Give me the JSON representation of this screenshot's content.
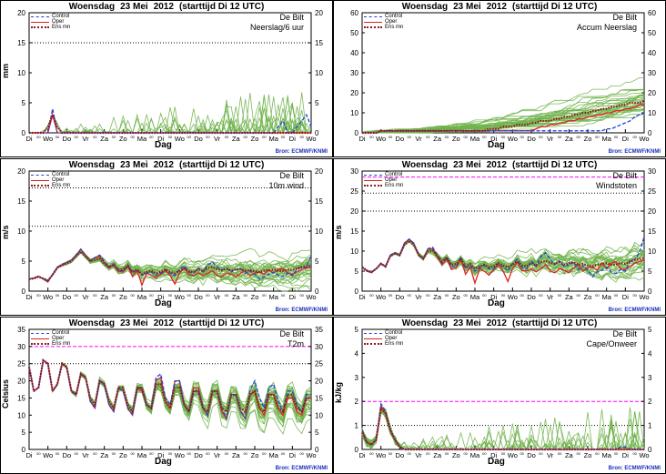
{
  "header": {
    "day": "Woensdag",
    "date": "23 Mei",
    "year": "2012",
    "start": "(starttijd  Di 12 UTC)"
  },
  "legend": {
    "control": "Control",
    "oper": "Oper",
    "ensmn": "Ens mn"
  },
  "source": "Bron: ECMWF/KNMI",
  "station": "De Bilt",
  "xaxis_label": "Dag",
  "day_ticks": [
    "Di",
    "Wo",
    "Do",
    "Vr",
    "Za",
    "Zo",
    "Ma",
    "Di",
    "Wo",
    "Do",
    "Vr",
    "Za",
    "Zo",
    "Ma",
    "Di",
    "Wo"
  ],
  "colors": {
    "control": "#2244dd",
    "oper": "#dd2222",
    "ensmn": "#8b1a1a",
    "members": "#6fb34a",
    "ref_line": "#ff00ff"
  },
  "chart_data": [
    {
      "id": "precip6h",
      "type": "line",
      "subtitle": "Neerslag/6 uur",
      "ylabel": "mm",
      "ylim": [
        0,
        20
      ],
      "yticks": [
        0,
        5,
        10,
        15,
        20
      ],
      "ref_lines": [
        {
          "value": 15,
          "style": "dotted-black"
        }
      ],
      "control": [
        0,
        0,
        0,
        0,
        0,
        4,
        0,
        0,
        0,
        0,
        0,
        0,
        0,
        0,
        0,
        0,
        0,
        0,
        0,
        0,
        0,
        0,
        0,
        0,
        0,
        0,
        0,
        0,
        0,
        0,
        0,
        0,
        0,
        0,
        0,
        0,
        0,
        0,
        0,
        0,
        0,
        0,
        0,
        0,
        0,
        0,
        0,
        0,
        0,
        0,
        0,
        0,
        0,
        1,
        2,
        0,
        0,
        1,
        2,
        3,
        1
      ],
      "oper": [
        0,
        0,
        0,
        0,
        0,
        3,
        0,
        0,
        0,
        0,
        0,
        0,
        0,
        0,
        0,
        0,
        0,
        0,
        0,
        0,
        0,
        0,
        0,
        0,
        0,
        0,
        0,
        0,
        0,
        0,
        0,
        0,
        0,
        0,
        0,
        0,
        0,
        0,
        0,
        0,
        0,
        0,
        0,
        0,
        0,
        0,
        0,
        0,
        0,
        0,
        0,
        0,
        0,
        0,
        0,
        0,
        0,
        0,
        0,
        0,
        0
      ],
      "ensmn": [
        0,
        0,
        0,
        0,
        1,
        3,
        1,
        0,
        0,
        0,
        0,
        0,
        0,
        0,
        0,
        0,
        0,
        0,
        0,
        0,
        0,
        0,
        0,
        0,
        0,
        0,
        0,
        0,
        0,
        0,
        0,
        0,
        0,
        0,
        0,
        0,
        0,
        0,
        0,
        0,
        0,
        0,
        0,
        0,
        0,
        0,
        0,
        0,
        0,
        0,
        0,
        0,
        0,
        0,
        0,
        0,
        0,
        0,
        0,
        0,
        0
      ]
    },
    {
      "id": "accum",
      "type": "line",
      "subtitle": "Accum Neerslag",
      "ylabel": "",
      "ylim": [
        0,
        60
      ],
      "yticks": [
        0,
        10,
        20,
        30,
        40,
        50,
        60
      ],
      "ref_lines": [],
      "control": [
        0,
        0,
        0,
        0,
        1,
        1,
        1,
        1,
        1,
        1,
        1,
        1,
        1,
        1,
        1,
        1,
        1,
        1,
        1,
        1,
        1,
        1,
        1,
        1,
        1,
        1,
        1,
        1,
        1,
        1,
        1,
        1,
        1,
        1,
        1,
        1,
        1,
        1,
        1,
        1,
        1,
        1,
        1,
        1,
        1,
        1,
        1,
        1,
        1,
        1,
        1,
        1,
        2,
        2,
        3,
        4,
        5,
        6,
        8,
        9,
        10
      ],
      "oper": [
        0,
        0,
        0,
        0,
        1,
        1,
        1,
        1,
        1,
        1,
        1,
        1,
        1,
        1,
        1,
        1,
        1,
        1,
        1,
        1,
        1,
        1,
        1,
        1,
        1,
        1,
        1,
        1,
        1,
        1,
        1,
        1,
        1,
        1,
        1,
        1,
        1,
        2,
        3,
        3,
        4,
        4,
        5,
        5,
        6,
        6,
        7,
        7,
        8,
        8,
        9,
        9,
        10,
        10,
        11,
        11,
        12,
        12,
        13,
        14,
        14
      ],
      "ensmn": [
        0,
        0,
        0,
        0,
        1,
        1,
        1,
        1,
        1,
        1,
        1,
        1,
        1,
        1,
        1,
        1,
        1,
        1,
        1,
        1,
        1,
        1,
        1,
        1,
        1,
        1,
        1,
        2,
        2,
        2,
        3,
        3,
        3,
        4,
        4,
        4,
        5,
        5,
        6,
        6,
        6,
        7,
        7,
        8,
        8,
        9,
        9,
        10,
        10,
        11,
        11,
        12,
        12,
        13,
        13,
        14,
        14,
        15,
        15,
        15,
        16
      ]
    },
    {
      "id": "wind",
      "type": "line",
      "subtitle": "10m wind",
      "ylabel": "m/s",
      "ylim": [
        0,
        20
      ],
      "yticks": [
        0,
        5,
        10,
        15,
        20
      ],
      "ref_lines": [
        {
          "value": 10.8,
          "style": "dotted-black"
        },
        {
          "value": 17.2,
          "style": "dotted-black"
        }
      ],
      "control": [
        2,
        2.2,
        2.5,
        2,
        1.6,
        2.8,
        4,
        4.5,
        4.8,
        5.2,
        6,
        7,
        6,
        5,
        5.6,
        6,
        5,
        4,
        4.6,
        3.4,
        3.4,
        4.4,
        3,
        3.6,
        2.6,
        3,
        3.2,
        2.6,
        3,
        3.6,
        3,
        2.6,
        3.6,
        4.2,
        3.2,
        3,
        3.8,
        3.2,
        4.4,
        4.8,
        4,
        3.6,
        3.8,
        3.2,
        3.6,
        3.8,
        3,
        3.4,
        2.8,
        2,
        2.4,
        2.8,
        3.2,
        2.6,
        2.4,
        3,
        2.6,
        3.6,
        4,
        4,
        6
      ],
      "oper": [
        2,
        2.2,
        2.5,
        2,
        1.5,
        2.8,
        4,
        4.4,
        4.8,
        5.2,
        6,
        7,
        6,
        5,
        5.6,
        5.8,
        4.8,
        3.8,
        4.4,
        3.2,
        3.2,
        4.2,
        2.4,
        3.4,
        1,
        3,
        2.6,
        2.2,
        2.8,
        3.4,
        2.6,
        1.2,
        3,
        3.8,
        2.8,
        2.6,
        3,
        2.6,
        3,
        3.4,
        2.6,
        2.4,
        3,
        2.8,
        2.4,
        3,
        3.4,
        2.6,
        3,
        3.2,
        2.8,
        3.6,
        3,
        3.6,
        3.8,
        3,
        2.8,
        3.2,
        3.6,
        3.8,
        4
      ],
      "ensmn": [
        2,
        2.1,
        2.4,
        2.1,
        1.8,
        2.7,
        3.9,
        4.3,
        4.6,
        5,
        5.8,
        6.6,
        5.8,
        5,
        5.2,
        5.4,
        4.6,
        4,
        4.4,
        3.6,
        3.6,
        4.2,
        3.2,
        3.6,
        2.8,
        3.2,
        3.4,
        3,
        3.2,
        3.6,
        3.2,
        3,
        3.4,
        3.8,
        3.3,
        3.2,
        3.6,
        3.3,
        3.8,
        4,
        3.6,
        3.5,
        3.7,
        3.4,
        3.6,
        3.7,
        3.4,
        3.5,
        3.3,
        3.2,
        3.4,
        3.5,
        3.6,
        3.4,
        3.4,
        3.6,
        3.5,
        3.8,
        4,
        4.1,
        4.3
      ]
    },
    {
      "id": "gust",
      "type": "line",
      "subtitle": "Windstoten",
      "ylabel": "m/s",
      "ylim": [
        0,
        30
      ],
      "yticks": [
        0,
        5,
        10,
        15,
        20,
        25,
        30
      ],
      "ref_lines": [
        {
          "value": 28.5,
          "style": "dashed-magenta"
        },
        {
          "value": 24.5,
          "style": "dotted-black"
        },
        {
          "value": 20,
          "style": "dotted-black"
        }
      ],
      "control": [
        6,
        5,
        4.6,
        5.6,
        7,
        6,
        9,
        9.6,
        9,
        12,
        13,
        12,
        9,
        8,
        10.6,
        11,
        9,
        7,
        8.6,
        6,
        6.2,
        8.4,
        5.6,
        6.4,
        5,
        5.8,
        6.4,
        5.6,
        5.6,
        7,
        6,
        5,
        6.8,
        8,
        6,
        5.6,
        7.6,
        6.2,
        8.6,
        9.6,
        8,
        6.6,
        7.6,
        6,
        6.6,
        7.2,
        5.4,
        6.4,
        5.2,
        3.6,
        4.8,
        5.2,
        6,
        4.8,
        4.4,
        5.4,
        5,
        7.4,
        8,
        9.6,
        13.6
      ],
      "oper": [
        6,
        5,
        4.6,
        5.6,
        7,
        6,
        9,
        9.6,
        9,
        12,
        13,
        12,
        9,
        8,
        10.6,
        10.6,
        8.6,
        6.6,
        8,
        5.4,
        5.8,
        8,
        4.2,
        6,
        2,
        5.6,
        5,
        4,
        5.4,
        6.6,
        5,
        2.4,
        5.6,
        7.2,
        5.2,
        5,
        5.6,
        4.8,
        5.6,
        6.6,
        5,
        4.6,
        5.6,
        5.2,
        4.6,
        5.8,
        6.6,
        5,
        5.8,
        6,
        5.2,
        7,
        5.6,
        7,
        7.4,
        5.6,
        5.4,
        6.2,
        7,
        7.4,
        7.8
      ],
      "ensmn": [
        6,
        5.2,
        4.8,
        5.6,
        6.8,
        6.2,
        8.8,
        9.4,
        9,
        11.6,
        12.6,
        11.6,
        9.2,
        8.2,
        10,
        10.2,
        8.8,
        7.4,
        8.4,
        6.6,
        6.8,
        8,
        6.2,
        6.8,
        5.6,
        6.2,
        6.6,
        6,
        6.2,
        7,
        6.4,
        6,
        6.6,
        7.4,
        6.4,
        6.2,
        7,
        6.4,
        7.2,
        7.6,
        7,
        6.8,
        7.2,
        6.6,
        7,
        7.2,
        6.6,
        6.8,
        6.4,
        6.2,
        6.6,
        6.8,
        7,
        6.6,
        6.6,
        7,
        6.8,
        7.4,
        7.8,
        8,
        8.4
      ]
    },
    {
      "id": "t2m",
      "type": "line",
      "subtitle": "T2m",
      "ylabel": "Celsius",
      "ylim": [
        0,
        35
      ],
      "yticks": [
        0,
        5,
        10,
        15,
        20,
        25,
        30,
        35
      ],
      "ref_lines": [
        {
          "value": 30,
          "style": "dashed-magenta"
        },
        {
          "value": 25,
          "style": "dotted-black"
        }
      ],
      "control": [
        24,
        17,
        18,
        26,
        25,
        17,
        19,
        25,
        24,
        17,
        16,
        22,
        21,
        14,
        12,
        20,
        19,
        13,
        11,
        18,
        17,
        12,
        10,
        18,
        18,
        13,
        12,
        21,
        22,
        15,
        13,
        20,
        20,
        13,
        11,
        17,
        17,
        12,
        10,
        17,
        17,
        12,
        9,
        16,
        16,
        11,
        9,
        17,
        20,
        15,
        12,
        18,
        19,
        14,
        11,
        17,
        17,
        13,
        11,
        16,
        16
      ],
      "oper": [
        24,
        17,
        18,
        26,
        25,
        17,
        19,
        25,
        24,
        17,
        16,
        22,
        21,
        14,
        12,
        20,
        19,
        13,
        11,
        18,
        17,
        12,
        10,
        18,
        17,
        13,
        12,
        20,
        21,
        14,
        12,
        20,
        20,
        13,
        11,
        18,
        18,
        12,
        10,
        17,
        17,
        11,
        9,
        16,
        16,
        11,
        9,
        16,
        17,
        12,
        10,
        16,
        16,
        12,
        10,
        15,
        15,
        11,
        10,
        15,
        15
      ],
      "ensmn": [
        24,
        17,
        18,
        26,
        25,
        17,
        19,
        25,
        24,
        17,
        16,
        22,
        21,
        15,
        13,
        20,
        19,
        14,
        12,
        18,
        18,
        13,
        11,
        18,
        18,
        13,
        12,
        19,
        19,
        14,
        12,
        18,
        18,
        13,
        11,
        17,
        17,
        12,
        11,
        17,
        17,
        12,
        11,
        16,
        16,
        12,
        11,
        16,
        17,
        12,
        11,
        16,
        16,
        12,
        11,
        16,
        16,
        12,
        11,
        15,
        15
      ]
    },
    {
      "id": "cape",
      "type": "line",
      "subtitle": "Cape/Onweer",
      "ylabel": "kJ/kg",
      "ylim": [
        0,
        5
      ],
      "yticks": [
        0,
        1,
        2,
        3,
        4,
        5
      ],
      "ref_lines": [
        {
          "value": 2,
          "style": "dashed-magenta"
        },
        {
          "value": 1,
          "style": "dotted-black"
        }
      ],
      "control": [
        0.8,
        0.3,
        0.2,
        0.4,
        1.9,
        1.6,
        0.8,
        0.4,
        0.1,
        0,
        0,
        0,
        0,
        0,
        0,
        0,
        0,
        0,
        0,
        0,
        0,
        0,
        0,
        0,
        0,
        0,
        0,
        0,
        0,
        0,
        0,
        0,
        0,
        0,
        0,
        0,
        0,
        0,
        0,
        0,
        0,
        0,
        0,
        0,
        0,
        0,
        0,
        0,
        0,
        0,
        0,
        0,
        0,
        0,
        0,
        0.1,
        0.1,
        0,
        0,
        0,
        0
      ],
      "oper": [
        0.8,
        0.3,
        0.2,
        0.4,
        1.8,
        1.5,
        0.8,
        0.4,
        0.1,
        0,
        0,
        0,
        0,
        0,
        0,
        0,
        0,
        0,
        0,
        0,
        0,
        0,
        0,
        0,
        0,
        0,
        0,
        0,
        0,
        0,
        0,
        0,
        0,
        0,
        0,
        0,
        0,
        0,
        0,
        0,
        0,
        0,
        0,
        0,
        0,
        0,
        0,
        0,
        0,
        0,
        0,
        0,
        0,
        0,
        0,
        0,
        0,
        0,
        0,
        0,
        0
      ],
      "ensmn": [
        0.7,
        0.3,
        0.2,
        0.4,
        1.7,
        1.5,
        0.8,
        0.4,
        0.1,
        0,
        0,
        0,
        0,
        0,
        0,
        0,
        0,
        0,
        0,
        0,
        0,
        0,
        0,
        0,
        0,
        0,
        0,
        0,
        0,
        0,
        0,
        0,
        0,
        0,
        0,
        0,
        0,
        0,
        0,
        0,
        0,
        0,
        0,
        0,
        0,
        0,
        0,
        0,
        0,
        0,
        0,
        0,
        0,
        0,
        0,
        0,
        0,
        0,
        0,
        0,
        0
      ]
    }
  ]
}
